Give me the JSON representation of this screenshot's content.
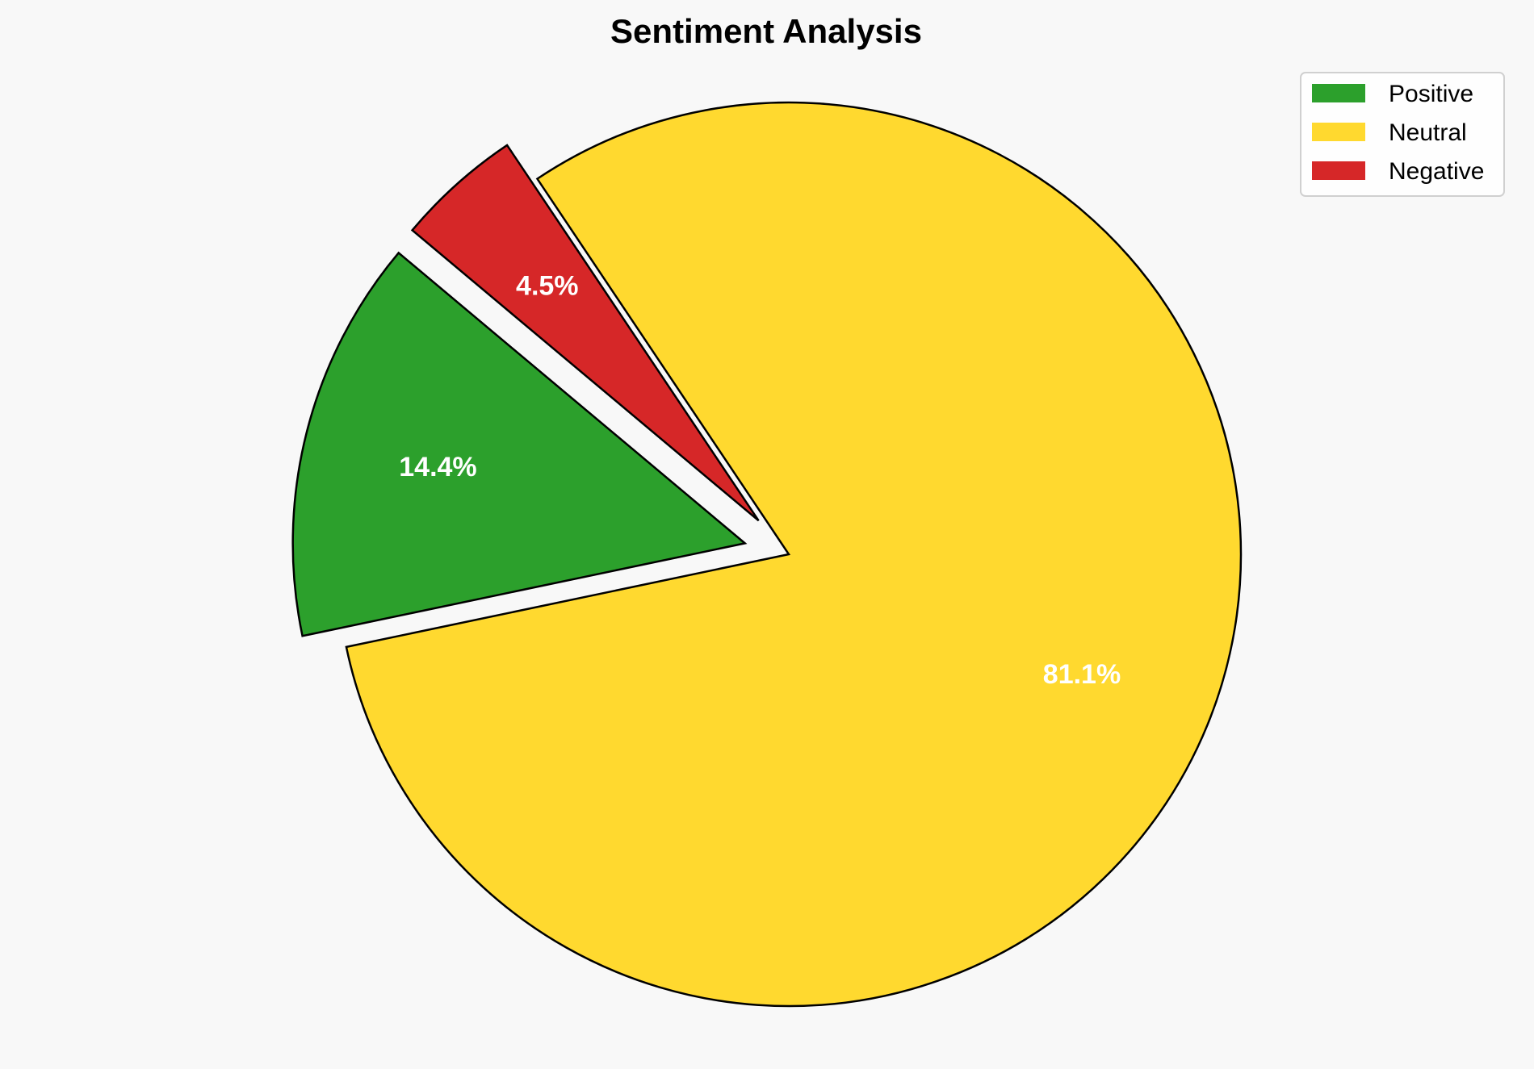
{
  "chart_data": {
    "type": "pie",
    "title": "Sentiment Analysis",
    "categories": [
      "Positive",
      "Neutral",
      "Negative"
    ],
    "values": [
      14.4,
      81.1,
      4.5
    ],
    "labels": [
      "14.4%",
      "81.1%",
      "4.5%"
    ],
    "colors": [
      "#2ca02c",
      "#ffd92f",
      "#d62728"
    ],
    "explode": [
      0.1,
      0,
      0.1
    ],
    "start_angle_deg": 140,
    "direction": "counterclockwise",
    "legend": {
      "position": "top-right",
      "entries": [
        "Positive",
        "Neutral",
        "Negative"
      ]
    }
  }
}
